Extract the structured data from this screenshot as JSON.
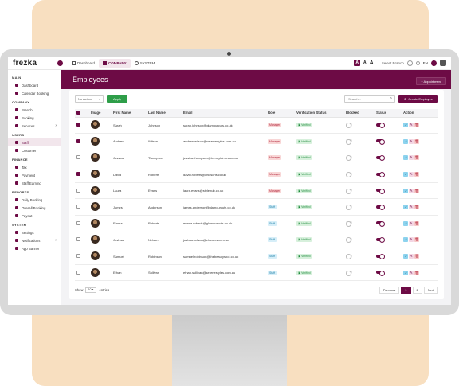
{
  "app": {
    "logo": "frezka"
  },
  "topbar": {
    "tabs": [
      {
        "label": "Dashboard",
        "icon": "grid-icon"
      },
      {
        "label": "COMPANY",
        "icon": "building-icon",
        "active": true
      },
      {
        "label": "SYSTEM",
        "icon": "gear-icon"
      }
    ],
    "font_sizes": [
      "A",
      "A",
      "A"
    ],
    "branch_label": "Select Branch",
    "language": "EN"
  },
  "sidebar": {
    "sections": [
      {
        "title": "MAIN",
        "items": [
          {
            "label": "Dashboard"
          },
          {
            "label": "Calendar Booking"
          }
        ]
      },
      {
        "title": "COMPANY",
        "items": [
          {
            "label": "Branch"
          },
          {
            "label": "Booking"
          },
          {
            "label": "Services",
            "chevron": "›"
          }
        ]
      },
      {
        "title": "USERS",
        "items": [
          {
            "label": "Staff",
            "active": true
          },
          {
            "label": "Customer"
          }
        ]
      },
      {
        "title": "FINANCE",
        "items": [
          {
            "label": "Tax"
          },
          {
            "label": "Payment"
          },
          {
            "label": "Staff Earning"
          }
        ]
      },
      {
        "title": "REPORTS",
        "items": [
          {
            "label": "Daily Booking"
          },
          {
            "label": "Overall Booking"
          },
          {
            "label": "Payout"
          }
        ]
      },
      {
        "title": "SYSTEM",
        "items": [
          {
            "label": "Settings"
          },
          {
            "label": "Notifications",
            "chevron": "›"
          },
          {
            "label": "App Banner"
          }
        ]
      }
    ]
  },
  "header": {
    "title": "Employees",
    "appointment_button": "+ Appointment"
  },
  "toolbar": {
    "bulk_action": "No Action",
    "apply": "Apply",
    "search_placeholder": "Search...",
    "create": "Create Employee"
  },
  "table": {
    "columns": [
      "Image",
      "First Name",
      "Last Name",
      "Email",
      "Role",
      "Verification Status",
      "Blocked",
      "Status",
      "Action"
    ],
    "rows": [
      {
        "checked": true,
        "first": "Sarah",
        "last": "Johnson",
        "email": "sarah.johnson@glamourcuts.co.uk",
        "role": "Manager",
        "verified": "Verified",
        "blocked": false,
        "status": true
      },
      {
        "checked": true,
        "first": "Andrew",
        "last": "Wilson",
        "email": "andrew.wilson@serenestyles.com.au",
        "role": "Manager",
        "verified": "Verified",
        "blocked": false,
        "status": true
      },
      {
        "checked": false,
        "first": "Jessica",
        "last": "Thompson",
        "email": "jessica.thompson@trendytrims.com.au",
        "role": "Manager",
        "verified": "Verified",
        "blocked": false,
        "status": true
      },
      {
        "checked": true,
        "first": "David",
        "last": "Roberts",
        "email": "david.roberts@chicscrts.co.uk",
        "role": "Manager",
        "verified": "Verified",
        "blocked": false,
        "status": true
      },
      {
        "checked": false,
        "first": "Laura",
        "last": "Evans",
        "email": "laura.evans@stylehub.co.uk",
        "role": "Manager",
        "verified": "Verified",
        "blocked": false,
        "status": true
      },
      {
        "checked": false,
        "first": "James",
        "last": "Anderson",
        "email": "james.anderson@glamourcuts.co.uk",
        "role": "Staff",
        "verified": "Verified",
        "blocked": false,
        "status": true
      },
      {
        "checked": false,
        "first": "Emma",
        "last": "Roberts",
        "email": "emma.roberts@glamourcuts.co.uk",
        "role": "Staff",
        "verified": "Verified",
        "blocked": false,
        "status": true
      },
      {
        "checked": false,
        "first": "Joshua",
        "last": "Nelson",
        "email": "joshua.nelson@chicscrs.com.au",
        "role": "Staff",
        "verified": "Verified",
        "blocked": false,
        "status": true
      },
      {
        "checked": false,
        "first": "Samuel",
        "last": "Robinson",
        "email": "samuel.robinson@thebeautyspot.co.uk",
        "role": "Staff",
        "verified": "Verified",
        "blocked": false,
        "status": true
      },
      {
        "checked": false,
        "first": "Ethan",
        "last": "Sullivan",
        "email": "ethan.sullivan@serenestyles.com.au",
        "role": "Staff",
        "verified": "Verified",
        "blocked": false,
        "status": true
      }
    ]
  },
  "footer": {
    "show": "Show",
    "per_page": "10",
    "entries": "entries"
  },
  "pagination": {
    "previous": "Previous",
    "pages": [
      "1",
      "2"
    ],
    "current": "1",
    "next": "Next"
  },
  "colors": {
    "accent": "#6d0b45",
    "apply_green": "#2e9e49",
    "backdrop": "#f8dfc0"
  }
}
